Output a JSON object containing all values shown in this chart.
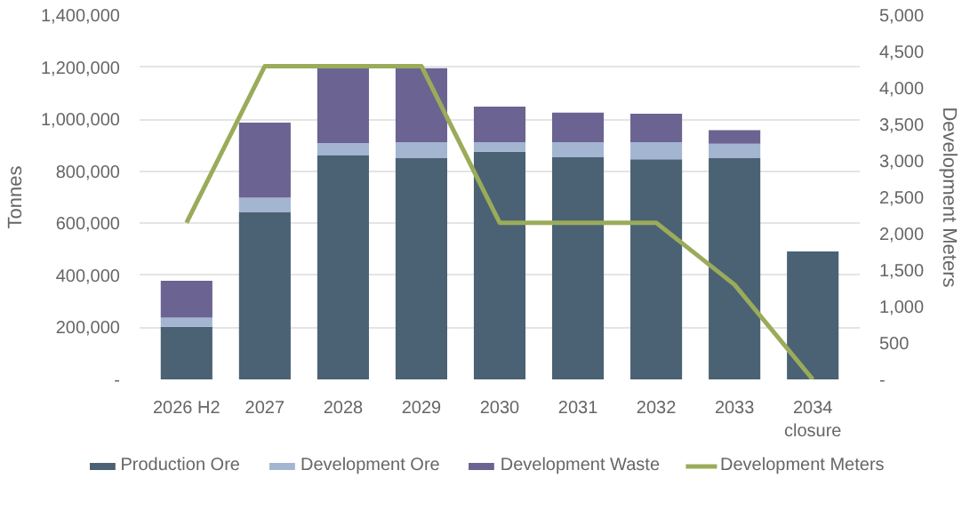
{
  "chart_data": {
    "type": "bar",
    "stacked": true,
    "categories": [
      "2026 H2",
      "2027",
      "2028",
      "2029",
      "2030",
      "2031",
      "2032",
      "2033",
      "2034\nclosure"
    ],
    "ylabel": "Tonnes",
    "y2label": "Development Meters",
    "ylim": [
      0,
      1400000
    ],
    "yticks": [
      {
        "value": 0,
        "label": "-"
      },
      {
        "value": 200000,
        "label": "200,000"
      },
      {
        "value": 400000,
        "label": "400,000"
      },
      {
        "value": 600000,
        "label": "600,000"
      },
      {
        "value": 800000,
        "label": "800,000"
      },
      {
        "value": 1000000,
        "label": "1,000,000"
      },
      {
        "value": 1200000,
        "label": "1,200,000"
      },
      {
        "value": 1400000,
        "label": "1,400,000"
      }
    ],
    "y2lim": [
      0,
      5000
    ],
    "y2ticks": [
      {
        "value": 0,
        "label": "-"
      },
      {
        "value": 500,
        "label": "500"
      },
      {
        "value": 1000,
        "label": "1,000"
      },
      {
        "value": 1500,
        "label": "1,500"
      },
      {
        "value": 2000,
        "label": "2,000"
      },
      {
        "value": 2500,
        "label": "2,500"
      },
      {
        "value": 3000,
        "label": "3,000"
      },
      {
        "value": 3500,
        "label": "3,500"
      },
      {
        "value": 4000,
        "label": "4,000"
      },
      {
        "value": 4500,
        "label": "4,500"
      },
      {
        "value": 5000,
        "label": "5,000"
      }
    ],
    "grid": "y",
    "legend": "bottom",
    "series": [
      {
        "name": "Production Ore",
        "color": "#4a6274",
        "values": [
          202000,
          644000,
          862000,
          850000,
          875000,
          854000,
          846000,
          850000,
          492000
        ]
      },
      {
        "name": "Development Ore",
        "color": "#a3b5d1",
        "values": [
          35000,
          54000,
          46000,
          62000,
          37000,
          58000,
          66000,
          56000,
          0
        ]
      },
      {
        "name": "Development Waste",
        "color": "#6b6391",
        "values": [
          142000,
          289000,
          292000,
          284000,
          136000,
          113000,
          109000,
          52000,
          0
        ]
      },
      {
        "name": "Development Meters",
        "type": "line",
        "axis": "y2",
        "color": "#9aab5a",
        "values": [
          2150,
          4300,
          4300,
          4300,
          2150,
          2150,
          2150,
          1300,
          0
        ]
      }
    ]
  }
}
